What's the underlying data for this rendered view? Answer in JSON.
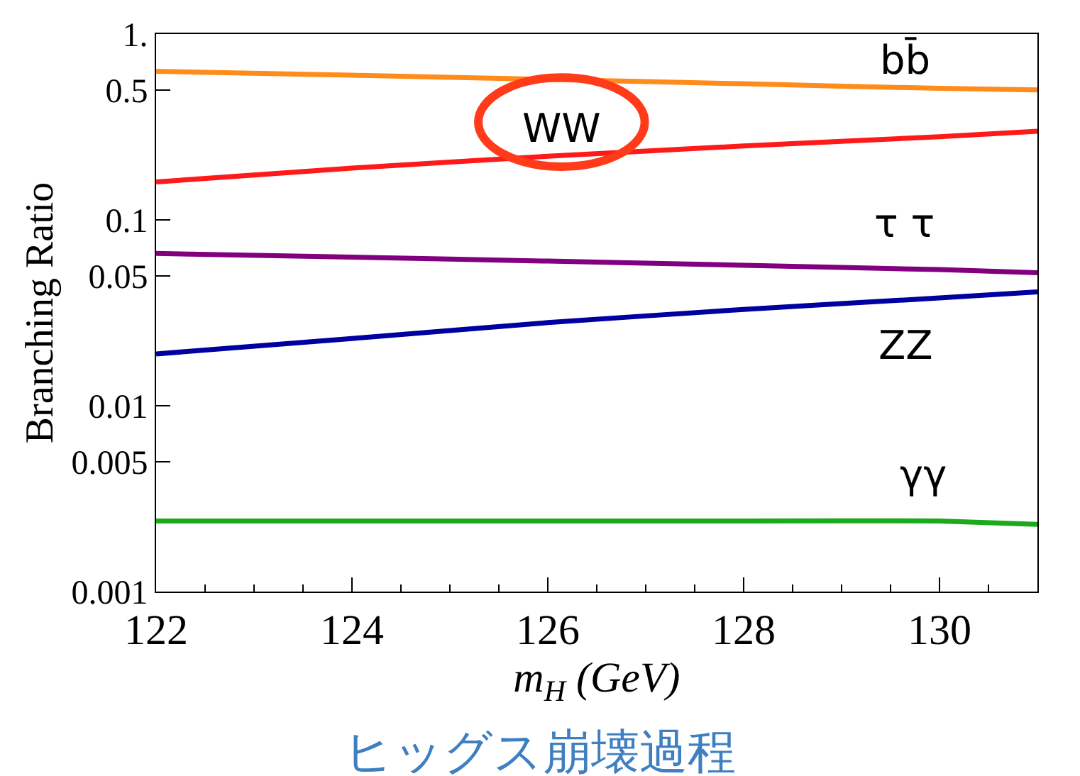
{
  "chart_data": {
    "type": "line",
    "title": "ヒッグス崩壊過程",
    "xlabel": "m$_{H}$ (GeV)",
    "ylabel": "Branching Ratio",
    "x": [
      122,
      124,
      126,
      128,
      130,
      131
    ],
    "series": [
      {
        "name": "bb̄",
        "color": "#ff8c1a",
        "values": [
          0.63,
          0.6,
          0.57,
          0.54,
          0.51,
          0.5
        ]
      },
      {
        "name": "WW",
        "color": "#ff1a1a",
        "values": [
          0.16,
          0.19,
          0.22,
          0.25,
          0.28,
          0.3
        ]
      },
      {
        "name": "τ τ",
        "color": "#800080",
        "values": [
          0.066,
          0.063,
          0.06,
          0.057,
          0.054,
          0.052
        ]
      },
      {
        "name": "ZZ",
        "color": "#0000a0",
        "values": [
          0.019,
          0.023,
          0.028,
          0.033,
          0.038,
          0.041
        ]
      },
      {
        "name": "γγ",
        "color": "#1aaa1a",
        "values": [
          0.0024,
          0.0024,
          0.0024,
          0.0024,
          0.0024,
          0.0023
        ]
      }
    ],
    "xlim": [
      122,
      131
    ],
    "xticks": [
      122,
      124,
      126,
      128,
      130
    ],
    "ylim": [
      0.001,
      1
    ],
    "yticks": [
      0.001,
      0.005,
      0.01,
      0.05,
      0.1,
      0.5,
      {
        "value": 1,
        "label": "1."
      }
    ],
    "log": "y",
    "legend": false,
    "marker": "none",
    "line_style": "solid"
  }
}
